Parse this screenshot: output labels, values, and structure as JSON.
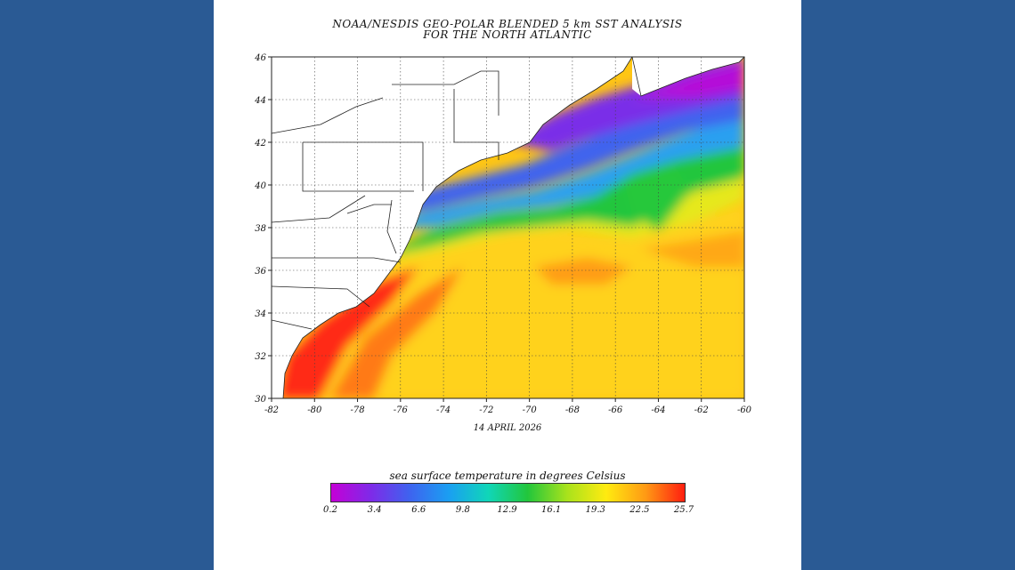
{
  "title": {
    "line1": "NOAA/NESDIS GEO-POLAR BLENDED 5 km SST ANALYSIS",
    "line2": "FOR THE NORTH ATLANTIC"
  },
  "date": "14 APRIL 2026",
  "map": {
    "lon_range": [
      -82,
      -60
    ],
    "lat_range": [
      30,
      46
    ],
    "lon_ticks": [
      "-82",
      "-80",
      "-78",
      "-76",
      "-74",
      "-72",
      "-70",
      "-68",
      "-66",
      "-64",
      "-62",
      "-60"
    ],
    "lat_ticks": [
      "30",
      "32",
      "34",
      "36",
      "38",
      "40",
      "42",
      "44",
      "46"
    ],
    "grid": true
  },
  "legend": {
    "title": "sea surface temperature in degrees Celsius",
    "ticks": [
      "0.2",
      "3.4",
      "6.6",
      "9.8",
      "12.9",
      "16.1",
      "19.3",
      "22.5",
      "25.7"
    ],
    "colors": [
      "#c400d6",
      "#7f2ae8",
      "#3e63ef",
      "#1a9ff2",
      "#10d6b8",
      "#22c63c",
      "#a8e21c",
      "#ffeb10",
      "#ff9a14",
      "#ff1e10"
    ]
  },
  "colors": {
    "background": "#2a5a94",
    "panel": "#ffffff"
  }
}
